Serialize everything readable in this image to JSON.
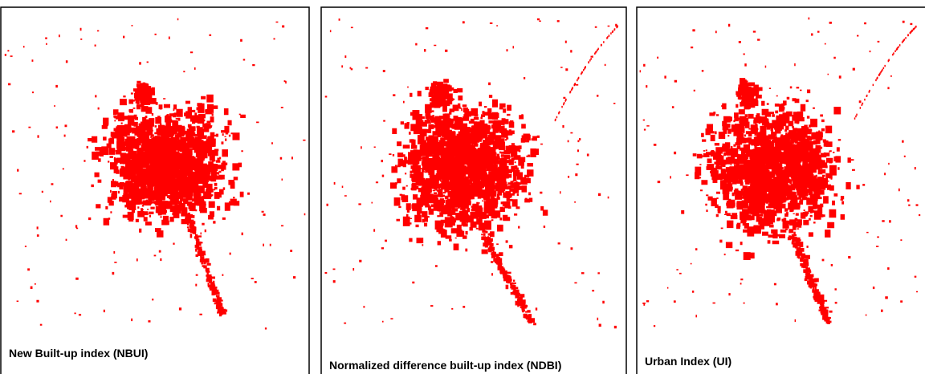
{
  "panels": [
    {
      "label": "New Built-up index (NBUI)"
    },
    {
      "label": "Normalized difference built-up index (NDBI)"
    },
    {
      "label": "Urban Index (UI)"
    }
  ]
}
